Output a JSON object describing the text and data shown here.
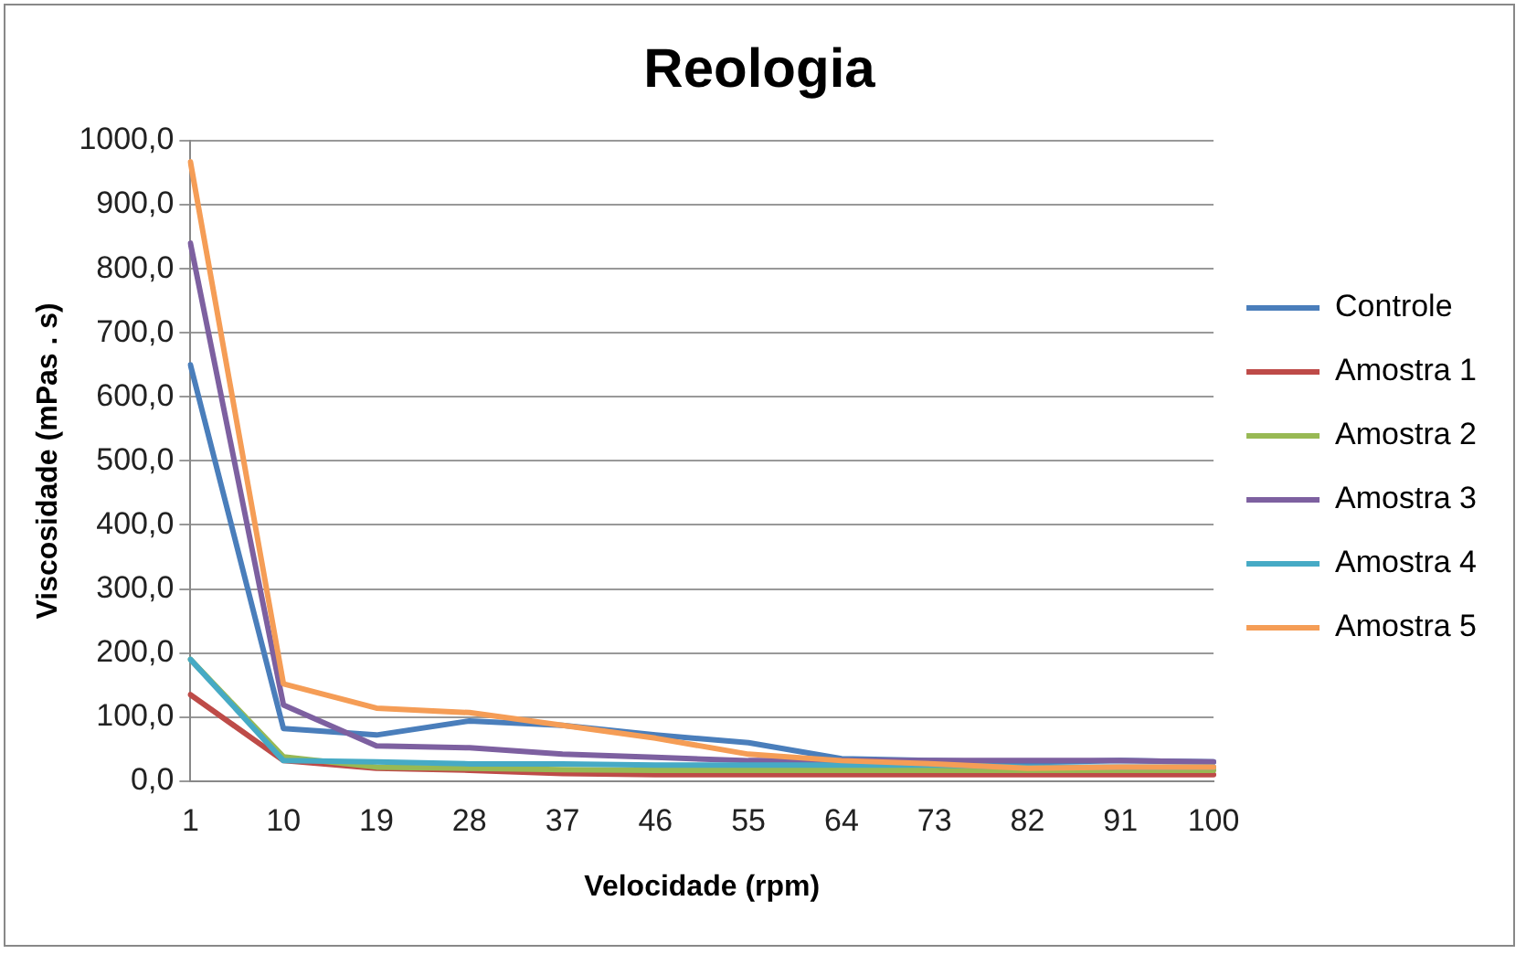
{
  "chart_data": {
    "type": "line",
    "title": "Reologia",
    "xlabel": "Velocidade (rpm)",
    "ylabel": "Viscosidade (mPas . s)",
    "categories": [
      "1",
      "10",
      "19",
      "28",
      "37",
      "46",
      "55",
      "64",
      "73",
      "82",
      "91",
      "100"
    ],
    "series": [
      {
        "name": "Controle",
        "color": "#4a7ebb",
        "values": [
          650,
          82,
          72,
          94,
          87,
          72,
          60,
          35,
          32,
          29,
          32,
          30
        ]
      },
      {
        "name": "Amostra 1",
        "color": "#be4b48",
        "values": [
          135,
          32,
          20,
          17,
          12,
          10,
          10,
          10,
          10,
          10,
          10,
          10
        ]
      },
      {
        "name": "Amostra 2",
        "color": "#98b954",
        "values": [
          190,
          38,
          22,
          20,
          18,
          17,
          17,
          17,
          17,
          17,
          17,
          17
        ]
      },
      {
        "name": "Amostra 3",
        "color": "#7d60a0",
        "values": [
          840,
          119,
          55,
          52,
          42,
          37,
          32,
          32,
          32,
          32,
          32,
          30
        ]
      },
      {
        "name": "Amostra 4",
        "color": "#46aac5",
        "values": [
          190,
          32,
          30,
          27,
          27,
          25,
          25,
          25,
          25,
          22,
          22,
          22
        ]
      },
      {
        "name": "Amostra 5",
        "color": "#f59d56",
        "values": [
          967,
          152,
          114,
          107,
          87,
          67,
          42,
          32,
          27,
          20,
          22,
          22
        ]
      }
    ],
    "ylim": [
      0,
      1000
    ],
    "yticks": [
      {
        "value": 0,
        "label": "0,0"
      },
      {
        "value": 100,
        "label": "100,0"
      },
      {
        "value": 200,
        "label": "200,0"
      },
      {
        "value": 300,
        "label": "300,0"
      },
      {
        "value": 400,
        "label": "400,0"
      },
      {
        "value": 500,
        "label": "500,0"
      },
      {
        "value": 600,
        "label": "600,0"
      },
      {
        "value": 700,
        "label": "700,0"
      },
      {
        "value": 800,
        "label": "800,0"
      },
      {
        "value": 900,
        "label": "900,0"
      },
      {
        "value": 1000,
        "label": "1000,0"
      }
    ],
    "grid": "y",
    "legend": "right",
    "marker": "none",
    "line_style": "solid"
  }
}
